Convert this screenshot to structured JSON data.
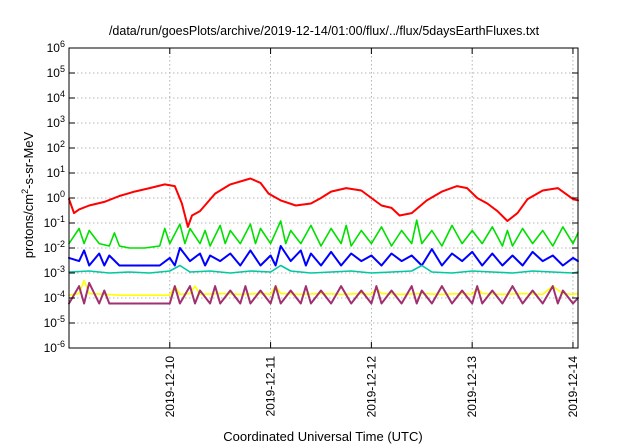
{
  "chart_data": {
    "type": "line",
    "title": "/data/run/goesPlots/archive/2019-12-14/01:00/flux/../flux/5daysEarthFluxes.txt",
    "xlabel": "Coordinated Universal Time (UTC)",
    "ylabel_base": "protons/cm",
    "ylabel_sup": "2",
    "ylabel_rest": "-s-sr-MeV",
    "x_range_days": [
      9.0,
      14.05
    ],
    "ylim_exp": [
      -6,
      6
    ],
    "y_scale": "log",
    "grid": true,
    "x_ticks": [
      {
        "x": 10,
        "label": "2019-12-10"
      },
      {
        "x": 11,
        "label": "2019-12-11"
      },
      {
        "x": 12,
        "label": "2019-12-12"
      },
      {
        "x": 13,
        "label": "2019-12-13"
      },
      {
        "x": 14,
        "label": "2019-12-14"
      }
    ],
    "y_ticks": [
      {
        "exp": -6,
        "base": "10",
        "sup": "-6"
      },
      {
        "exp": -5,
        "base": "10",
        "sup": "-5"
      },
      {
        "exp": -4,
        "base": "10",
        "sup": "-4"
      },
      {
        "exp": -3,
        "base": "10",
        "sup": "-3"
      },
      {
        "exp": -2,
        "base": "10",
        "sup": "-2"
      },
      {
        "exp": -1,
        "base": "10",
        "sup": "-1"
      },
      {
        "exp": 0,
        "base": "10",
        "sup": "0"
      },
      {
        "exp": 1,
        "base": "10",
        "sup": "1"
      },
      {
        "exp": 2,
        "base": "10",
        "sup": "2"
      },
      {
        "exp": 3,
        "base": "10",
        "sup": "3"
      },
      {
        "exp": 4,
        "base": "10",
        "sup": "4"
      },
      {
        "exp": 5,
        "base": "10",
        "sup": "5"
      },
      {
        "exp": 6,
        "base": "10",
        "sup": "6"
      }
    ],
    "series": [
      {
        "color": "#ff0000",
        "width": 2,
        "x": [
          9.0,
          9.05,
          9.1,
          9.2,
          9.35,
          9.5,
          9.65,
          9.8,
          9.95,
          10.05,
          10.12,
          10.18,
          10.22,
          10.3,
          10.45,
          10.6,
          10.8,
          10.9,
          10.98,
          11.1,
          11.25,
          11.4,
          11.5,
          11.6,
          11.75,
          11.9,
          12.0,
          12.1,
          12.2,
          12.28,
          12.4,
          12.55,
          12.7,
          12.85,
          12.95,
          13.05,
          13.15,
          13.25,
          13.35,
          13.45,
          13.55,
          13.7,
          13.85,
          14.0,
          14.05
        ],
        "y": [
          0.9,
          0.25,
          0.35,
          0.5,
          0.7,
          1.2,
          1.8,
          2.5,
          3.5,
          3.0,
          0.6,
          0.07,
          0.2,
          0.3,
          1.5,
          3.5,
          6.0,
          4.0,
          1.5,
          0.8,
          0.5,
          0.6,
          1.0,
          1.8,
          2.5,
          2.0,
          1.0,
          0.5,
          0.4,
          0.2,
          0.25,
          0.8,
          1.8,
          3.0,
          2.5,
          1.0,
          0.6,
          0.3,
          0.12,
          0.25,
          0.9,
          2.0,
          2.5,
          0.9,
          0.8
        ]
      },
      {
        "color": "#00e000",
        "width": 1.6,
        "x": [
          9.0,
          9.1,
          9.15,
          9.2,
          9.3,
          9.4,
          9.45,
          9.5,
          9.6,
          9.75,
          9.9,
          9.95,
          10.0,
          10.1,
          10.15,
          10.2,
          10.3,
          10.35,
          10.4,
          10.5,
          10.55,
          10.6,
          10.7,
          10.8,
          10.85,
          10.9,
          11.0,
          11.1,
          11.15,
          11.2,
          11.3,
          11.4,
          11.5,
          11.6,
          11.7,
          11.75,
          11.8,
          11.9,
          12.0,
          12.1,
          12.2,
          12.3,
          12.4,
          12.45,
          12.5,
          12.6,
          12.7,
          12.8,
          12.9,
          13.0,
          13.1,
          13.2,
          13.3,
          13.35,
          13.4,
          13.5,
          13.6,
          13.7,
          13.8,
          13.9,
          14.0,
          14.05
        ],
        "y": [
          0.015,
          0.06,
          0.015,
          0.05,
          0.015,
          0.012,
          0.04,
          0.012,
          0.01,
          0.01,
          0.012,
          0.06,
          0.015,
          0.09,
          0.015,
          0.06,
          0.015,
          0.05,
          0.012,
          0.08,
          0.015,
          0.05,
          0.015,
          0.09,
          0.015,
          0.06,
          0.015,
          0.12,
          0.015,
          0.05,
          0.015,
          0.08,
          0.012,
          0.06,
          0.015,
          0.08,
          0.012,
          0.05,
          0.015,
          0.07,
          0.012,
          0.05,
          0.015,
          0.13,
          0.015,
          0.05,
          0.012,
          0.08,
          0.015,
          0.05,
          0.015,
          0.07,
          0.012,
          0.05,
          0.012,
          0.06,
          0.015,
          0.05,
          0.012,
          0.07,
          0.015,
          0.04
        ]
      },
      {
        "color": "#0000ff",
        "width": 2,
        "x": [
          9.0,
          9.1,
          9.15,
          9.2,
          9.3,
          9.35,
          9.4,
          9.5,
          9.6,
          9.75,
          9.9,
          10.0,
          10.05,
          10.1,
          10.2,
          10.3,
          10.35,
          10.4,
          10.5,
          10.6,
          10.7,
          10.8,
          10.9,
          11.0,
          11.05,
          11.1,
          11.2,
          11.3,
          11.35,
          11.4,
          11.5,
          11.6,
          11.7,
          11.8,
          11.9,
          12.0,
          12.1,
          12.2,
          12.3,
          12.4,
          12.5,
          12.6,
          12.7,
          12.8,
          12.9,
          13.0,
          13.1,
          13.2,
          13.3,
          13.4,
          13.5,
          13.6,
          13.7,
          13.8,
          13.9,
          14.0,
          14.05
        ],
        "y": [
          0.004,
          0.003,
          0.008,
          0.002,
          0.006,
          0.002,
          0.005,
          0.002,
          0.002,
          0.002,
          0.002,
          0.004,
          0.002,
          0.01,
          0.003,
          0.006,
          0.002,
          0.005,
          0.003,
          0.006,
          0.002,
          0.008,
          0.002,
          0.005,
          0.002,
          0.012,
          0.003,
          0.008,
          0.002,
          0.006,
          0.002,
          0.007,
          0.002,
          0.006,
          0.003,
          0.005,
          0.002,
          0.006,
          0.003,
          0.005,
          0.002,
          0.009,
          0.002,
          0.006,
          0.003,
          0.007,
          0.002,
          0.006,
          0.002,
          0.005,
          0.002,
          0.007,
          0.003,
          0.005,
          0.002,
          0.004,
          0.003
        ]
      },
      {
        "color": "#00c8a0",
        "width": 1.6,
        "x": [
          9.0,
          9.2,
          9.4,
          9.6,
          9.8,
          10.0,
          10.1,
          10.2,
          10.4,
          10.6,
          10.8,
          11.0,
          11.1,
          11.2,
          11.4,
          11.6,
          11.8,
          12.0,
          12.2,
          12.4,
          12.5,
          12.6,
          12.8,
          13.0,
          13.2,
          13.4,
          13.6,
          13.8,
          14.0,
          14.05
        ],
        "y": [
          0.0011,
          0.0012,
          0.001,
          0.0011,
          0.001,
          0.0012,
          0.002,
          0.0011,
          0.0012,
          0.001,
          0.0012,
          0.0011,
          0.002,
          0.0012,
          0.001,
          0.0011,
          0.0012,
          0.001,
          0.0011,
          0.0012,
          0.002,
          0.0011,
          0.001,
          0.0012,
          0.0011,
          0.001,
          0.0012,
          0.0011,
          0.001,
          0.0011
        ]
      },
      {
        "color": "#ffff00",
        "width": 1.6,
        "x": [
          9.0,
          9.1,
          9.15,
          9.2,
          9.35,
          9.5,
          9.75,
          10.0,
          10.05,
          10.1,
          10.2,
          10.25,
          10.3,
          10.5,
          10.7,
          10.9,
          11.0,
          11.05,
          11.1,
          11.3,
          11.5,
          11.7,
          11.9,
          12.0,
          12.05,
          12.1,
          12.3,
          12.5,
          12.7,
          12.9,
          13.0,
          13.05,
          13.1,
          13.3,
          13.5,
          13.7,
          13.8,
          13.9,
          14.0,
          14.05
        ],
        "y": [
          0.00013,
          0.00015,
          0.0005,
          0.00015,
          0.00014,
          0.00013,
          0.00013,
          0.00013,
          0.0003,
          0.00014,
          0.00015,
          0.0003,
          0.00014,
          0.00015,
          0.00014,
          0.00015,
          0.00014,
          0.0003,
          0.00015,
          0.00014,
          0.00015,
          0.00014,
          0.00015,
          0.00014,
          0.00025,
          0.00015,
          0.00014,
          0.00015,
          0.00014,
          0.00015,
          0.00014,
          0.00025,
          0.00015,
          0.00014,
          0.00015,
          0.00014,
          0.0003,
          0.00015,
          0.00014,
          0.00015
        ]
      },
      {
        "color": "#a03070",
        "width": 2,
        "x": [
          9.0,
          9.1,
          9.15,
          9.2,
          9.3,
          9.35,
          9.4,
          9.5,
          9.6,
          9.75,
          9.9,
          10.0,
          10.05,
          10.1,
          10.2,
          10.25,
          10.3,
          10.4,
          10.45,
          10.5,
          10.6,
          10.7,
          10.75,
          10.8,
          10.9,
          11.0,
          11.05,
          11.1,
          11.2,
          11.3,
          11.35,
          11.4,
          11.5,
          11.6,
          11.7,
          11.8,
          11.9,
          12.0,
          12.05,
          12.1,
          12.2,
          12.3,
          12.4,
          12.45,
          12.5,
          12.6,
          12.7,
          12.8,
          12.9,
          13.0,
          13.05,
          13.1,
          13.2,
          13.3,
          13.4,
          13.5,
          13.6,
          13.7,
          13.8,
          13.85,
          13.9,
          14.0,
          14.05
        ],
        "y": [
          6e-05,
          0.0003,
          6e-05,
          0.0004,
          6e-05,
          0.0002,
          6e-05,
          6e-05,
          6e-05,
          6e-05,
          6e-05,
          6e-05,
          0.0003,
          6e-05,
          0.0003,
          6e-05,
          0.0002,
          6e-05,
          0.0003,
          6e-05,
          0.0002,
          6e-05,
          0.0003,
          6e-05,
          0.0002,
          6e-05,
          0.0003,
          6e-05,
          0.0002,
          6e-05,
          0.0003,
          6e-05,
          0.0002,
          6e-05,
          0.0003,
          6e-05,
          0.0002,
          6e-05,
          0.0003,
          6e-05,
          0.0002,
          6e-05,
          0.0003,
          6e-05,
          0.0002,
          6e-05,
          0.0003,
          6e-05,
          0.0002,
          6e-05,
          0.0003,
          6e-05,
          0.0002,
          6e-05,
          0.0003,
          6e-05,
          0.0002,
          6e-05,
          0.0003,
          6e-05,
          0.0002,
          6e-05,
          0.0001
        ]
      }
    ]
  }
}
